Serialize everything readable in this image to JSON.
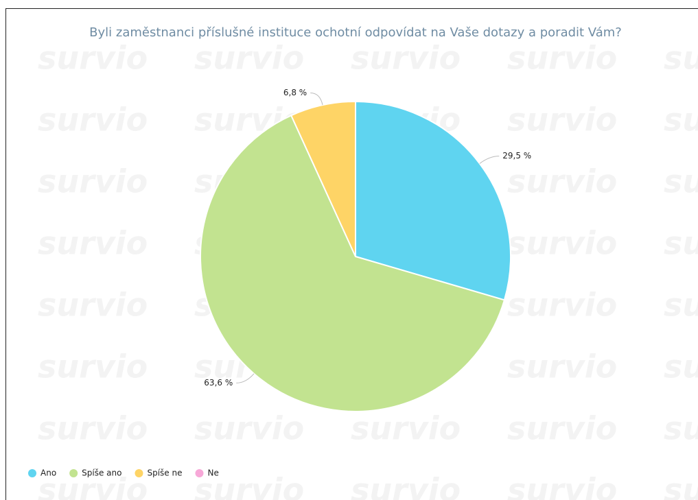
{
  "chart_data": {
    "type": "pie",
    "title": "Byli zaměstnanci příslušné instituce ochotní odpovídat na Vaše dotazy a poradit Vám?",
    "watermark": "survio",
    "categories": [
      "Ano",
      "Spíše ano",
      "Spíše ne",
      "Ne"
    ],
    "values": [
      29.5,
      63.6,
      6.8,
      0
    ],
    "value_labels": [
      "29,5 %",
      "63,6 %",
      "6,8 %",
      null
    ],
    "colors": [
      "#5fd4f0",
      "#c2e390",
      "#fed466",
      "#f7a8d8"
    ],
    "legend": "bottom-left"
  }
}
